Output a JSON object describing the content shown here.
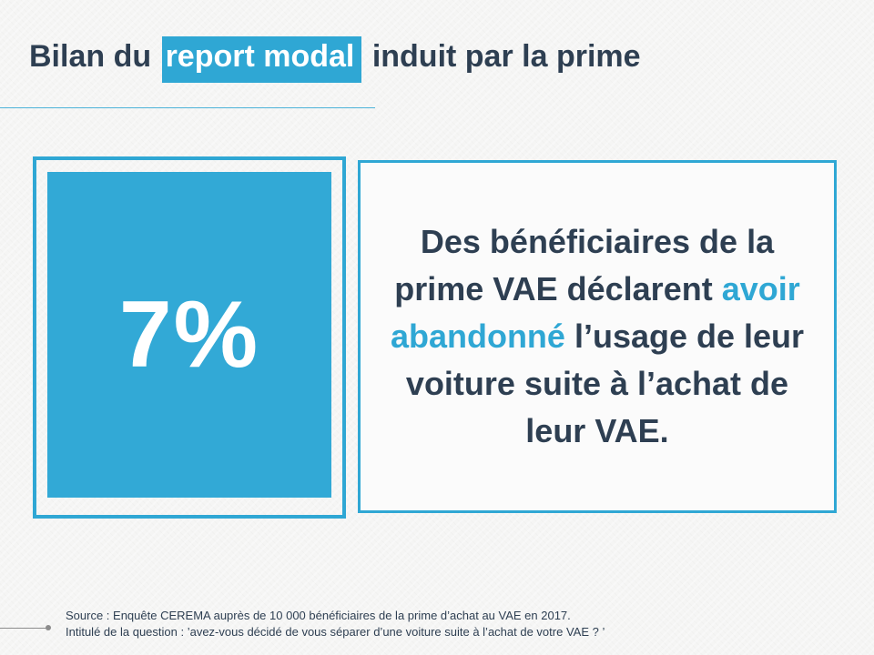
{
  "header": {
    "title_before": "Bilan du ",
    "title_highlight": "report modal",
    "title_after": " induit par la prime"
  },
  "stat": {
    "value": "7%"
  },
  "statement": {
    "part1": "Des bénéficiaires de la prime VAE déclarent ",
    "accent": "avoir abandonné",
    "part2": " l’usage de leur voiture suite à l’achat de leur VAE."
  },
  "footer": {
    "source": "Source : Enquête CEREMA auprès de 10 000 bénéficiaires de la prime d’achat au VAE en 2017.",
    "question": "Intitulé de la question :  ’avez-vous décidé de vous séparer d’une voiture suite à l’achat de votre VAE ? ’"
  },
  "colors": {
    "accent": "#2fa7d4",
    "text": "#2e3f52",
    "background": "#f5f5f4"
  }
}
